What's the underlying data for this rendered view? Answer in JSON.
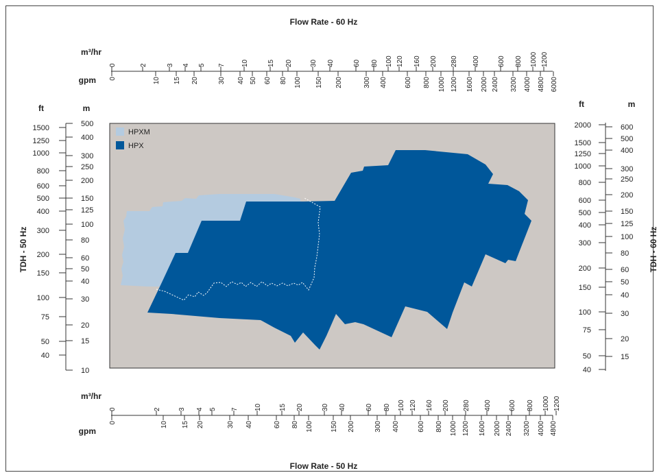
{
  "chart_data": {
    "type": "area",
    "title_top": "Flow Rate - 60 Hz",
    "title_bottom": "Flow Rate - 50 Hz",
    "left_axis_title": "TDH - 50 Hz",
    "right_axis_title": "TDH - 60 Hz",
    "units": {
      "m3hr": "m³/hr",
      "gpm": "gpm",
      "ft": "ft",
      "m": "m"
    },
    "scale": "log",
    "legend": [
      {
        "name": "HPXM",
        "color": "#b4cbe0"
      },
      {
        "name": "HPX",
        "color": "#00579a"
      }
    ],
    "plot_background": "#cdc8c4",
    "top_m3hr_ticks": [
      "0",
      "2",
      "3",
      "4",
      "5",
      "7",
      "10",
      "15",
      "20",
      "30",
      "40",
      "60",
      "80",
      "100",
      "120",
      "160",
      "200",
      "280",
      "400",
      "600",
      "800",
      "1000",
      "1200"
    ],
    "top_gpm_ticks": [
      "0",
      "10",
      "15",
      "20",
      "30",
      "40",
      "50",
      "60",
      "80",
      "100",
      "150",
      "200",
      "300",
      "400",
      "600",
      "800",
      "1000",
      "1200",
      "1600",
      "2000",
      "2400",
      "3200",
      "4000",
      "4800",
      "6000"
    ],
    "bottom_m3hr_ticks": [
      "0",
      "2",
      "3",
      "4",
      "5",
      "7",
      "10",
      "15",
      "20",
      "30",
      "40",
      "60",
      "80",
      "100",
      "120",
      "160",
      "200",
      "280",
      "400",
      "600",
      "800",
      "1000",
      "1200"
    ],
    "bottom_gpm_ticks": [
      "0",
      "10",
      "15",
      "20",
      "30",
      "40",
      "60",
      "80",
      "100",
      "150",
      "200",
      "300",
      "400",
      "600",
      "800",
      "1000",
      "1200",
      "1600",
      "2000",
      "2400",
      "3200",
      "4000",
      "4800"
    ],
    "left_ft_ticks": [
      "1500",
      "1250",
      "1000",
      "800",
      "600",
      "500",
      "400",
      "300",
      "200",
      "150",
      "100",
      "75",
      "50",
      "40"
    ],
    "left_m_ticks": [
      "500",
      "400",
      "300",
      "250",
      "200",
      "150",
      "125",
      "100",
      "80",
      "60",
      "50",
      "40",
      "30",
      "20",
      "15",
      "10"
    ],
    "right_ft_ticks": [
      "2000",
      "1500",
      "1250",
      "1000",
      "800",
      "600",
      "500",
      "400",
      "300",
      "200",
      "150",
      "100",
      "75",
      "50",
      "40"
    ],
    "right_m_ticks": [
      "600",
      "500",
      "400",
      "300",
      "250",
      "200",
      "150",
      "125",
      "100",
      "80",
      "60",
      "50",
      "40",
      "30",
      "20",
      "15"
    ],
    "series": [
      {
        "name": "HPXM",
        "region": "hydraulic coverage 50 Hz, approx 0.5 – 20 m³/hr, 35 – 160 m"
      },
      {
        "name": "HPX",
        "region": "hydraulic coverage 50 Hz, approx 2 – 1200 m³/hr, 15 – 400 m"
      }
    ]
  }
}
